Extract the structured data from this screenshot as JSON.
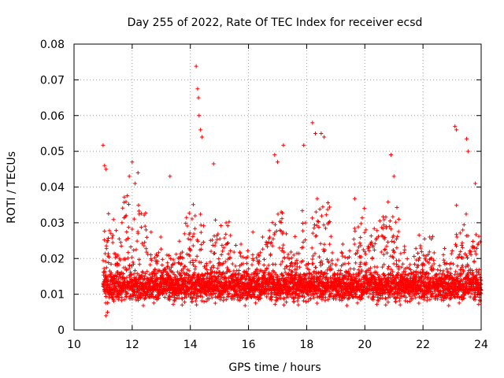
{
  "chart_data": {
    "type": "scatter",
    "title": "Day 255 of 2022, Rate Of TEC Index for receiver ecsd",
    "xlabel": "GPS time / hours",
    "ylabel": "ROTI / TECUs",
    "xlim": [
      10,
      24
    ],
    "ylim": [
      0,
      0.08
    ],
    "x_ticks": [
      10,
      12,
      14,
      16,
      18,
      20,
      22,
      24
    ],
    "x_tick_labels": [
      "10",
      "12",
      "14",
      "16",
      "18",
      "20",
      "22",
      "24"
    ],
    "y_ticks": [
      0,
      0.01,
      0.02,
      0.03,
      0.04,
      0.05,
      0.06,
      0.07,
      0.08
    ],
    "y_tick_labels": [
      "0",
      "0.01",
      "0.02",
      "0.03",
      "0.04",
      "0.05",
      "0.06",
      "0.07",
      "0.08"
    ],
    "grid": true,
    "marker": "+",
    "series": [
      {
        "name": "ROTI",
        "color": "#ff0000",
        "x_range": [
          11.0,
          24.0
        ],
        "typical_band": [
          0.005,
          0.022
        ],
        "highlight_points": [
          [
            11.0,
            0.0517
          ],
          [
            11.05,
            0.046
          ],
          [
            11.1,
            0.045
          ],
          [
            11.1,
            0.004
          ],
          [
            11.15,
            0.005
          ],
          [
            11.9,
            0.043
          ],
          [
            12.0,
            0.047
          ],
          [
            12.1,
            0.041
          ],
          [
            12.2,
            0.044
          ],
          [
            13.3,
            0.043
          ],
          [
            14.2,
            0.0738
          ],
          [
            14.25,
            0.0675
          ],
          [
            14.28,
            0.065
          ],
          [
            14.3,
            0.06
          ],
          [
            14.35,
            0.056
          ],
          [
            14.4,
            0.054
          ],
          [
            14.8,
            0.0465
          ],
          [
            16.9,
            0.049
          ],
          [
            17.0,
            0.047
          ],
          [
            17.2,
            0.0517
          ],
          [
            17.9,
            0.0517
          ],
          [
            18.2,
            0.058
          ],
          [
            18.3,
            0.055
          ],
          [
            18.5,
            0.055
          ],
          [
            18.6,
            0.054
          ],
          [
            20.9,
            0.049
          ],
          [
            21.0,
            0.043
          ],
          [
            23.1,
            0.057
          ],
          [
            23.15,
            0.056
          ],
          [
            23.5,
            0.0535
          ],
          [
            23.55,
            0.05
          ],
          [
            23.8,
            0.041
          ]
        ]
      }
    ]
  }
}
